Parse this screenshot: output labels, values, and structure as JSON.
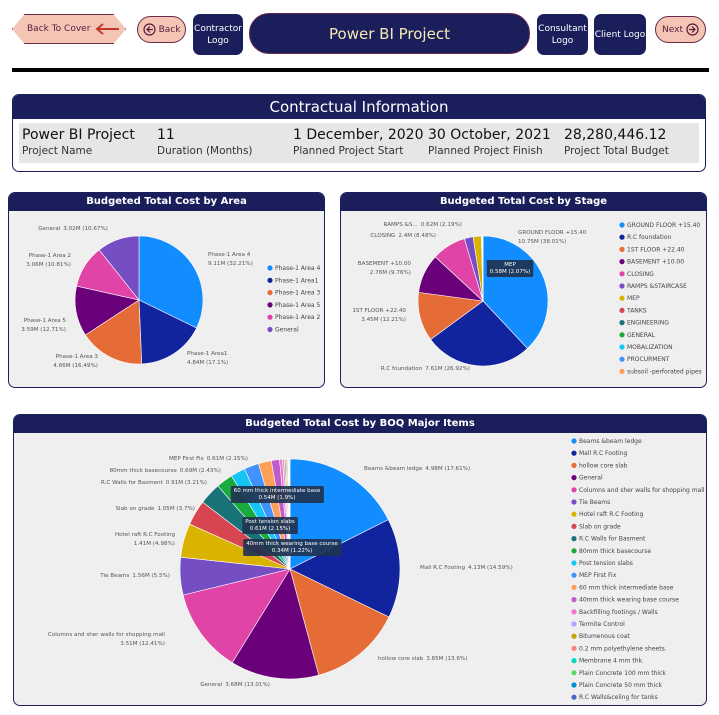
{
  "header": {
    "back_to_cover": "Back To Cover",
    "back": "Back",
    "contractor_logo": "Contractor Logo",
    "title": "Power BI Project",
    "consultant_logo": "Consultant Logo",
    "client_logo": "Client Logo",
    "next": "Next"
  },
  "contract": {
    "title": "Contractual Information",
    "fields": [
      {
        "value": "Power BI Project",
        "label": "Project Name"
      },
      {
        "value": 11,
        "label": "Duration (Months)"
      },
      {
        "value": "1 December, 2020",
        "label": "Planned Project Start"
      },
      {
        "value": "30 October, 2021",
        "label": "Planned Project Finish"
      },
      {
        "value": "28,280,446.12",
        "label": "Project Total Budget"
      }
    ]
  },
  "chart_data": [
    {
      "type": "pie",
      "title": "Budgeted Total Cost by Area",
      "legend": "right",
      "categories": [
        "Phase-1 Area 4",
        "Phase-1 Area1",
        "Phase-1 Area 3",
        "Phase-1 Area 5",
        "Phase-1 Area 2",
        "General"
      ],
      "values": [
        9.11,
        4.84,
        4.66,
        3.59,
        3.06,
        3.02
      ],
      "value_labels": [
        "9.11M (32.21%)",
        "4.84M (17.1%)",
        "4.66M (16.49%)",
        "3.59M (12.71%)",
        "3.06M (10.81%)",
        "3.02M (10.67%)"
      ],
      "colors": [
        "#118dff",
        "#12239e",
        "#e66c37",
        "#6b007b",
        "#e044a7",
        "#744ec2"
      ]
    },
    {
      "type": "pie",
      "title": "Budgeted Total Cost by Stage",
      "legend": "right",
      "categories": [
        "GROUND FLOOR +15.40",
        "R.C foundation",
        "1ST FLOOR +22.40",
        "BASEMENT +10.00",
        "CLOSING",
        "RAMPS &STAIRCASE",
        "MEP",
        "TANKS",
        "ENGINEERING",
        "GENERAL",
        "MOBALIZATION",
        "PROCURMENT",
        "subsoil -perforated pipes"
      ],
      "data_label_names": [
        "GROUND FLOOR +15.40",
        "R.C foundation",
        "1ST FLOOR +22.40",
        "BASEMENT +10.00",
        "CLOSING",
        "RAMPS &S...",
        "MEP",
        null,
        null,
        null,
        null,
        null,
        null
      ],
      "values": [
        10.75,
        7.61,
        3.45,
        2.76,
        2.4,
        0.62,
        0.58,
        0.03,
        0.02,
        0.02,
        0.02,
        0.01,
        0.01
      ],
      "value_labels": [
        "10.75M (38.01%)",
        "7.61M (26.92%)",
        "3.45M (12.21%)",
        "2.76M (9.76%)",
        "2.4M (8.48%)",
        "0.62M (2.19%)",
        "0.58M (2.07%)",
        null,
        null,
        null,
        null,
        null,
        null
      ],
      "colors": [
        "#118dff",
        "#12239e",
        "#e66c37",
        "#6b007b",
        "#e044a7",
        "#744ec2",
        "#d9b300",
        "#d64550",
        "#197278",
        "#1aab40",
        "#15c6f4",
        "#4092ff",
        "#ffa058"
      ]
    },
    {
      "type": "pie",
      "title": "Budgeted Total Cost by BOQ Major Items",
      "legend": "right",
      "categories": [
        "Beams &beam ledge",
        "Mall R.C Footing",
        "hollow core slab",
        "General",
        "Columns and sher walls for shopping mall",
        "Tie Beams",
        "Hotel raft R.C Footing",
        "Slab on grade",
        "R.C Walls for Basment",
        "80mm thick basecourse",
        "Post tension slabs",
        "MEP First Fix",
        "60 mm thick intermediate base",
        "40mm thick wearing base course",
        "Backfilling footings / Walls",
        "Termite Control",
        "Bitumenous coat",
        "0.2 mm polyethylene sheets.",
        "Membrane  4 mm thk.",
        "Plain Concrete 100 mm thick",
        "Plain Concrete 50 mm thick",
        "R.C Walls&celing for tanks"
      ],
      "values": [
        4.98,
        4.13,
        3.85,
        3.68,
        3.51,
        1.56,
        1.41,
        1.05,
        0.91,
        0.69,
        0.61,
        0.61,
        0.54,
        0.34,
        0.12,
        0.08,
        0.06,
        0.05,
        0.04,
        0.03,
        0.03,
        0.02
      ],
      "value_labels": [
        "4.98M (17.61%)",
        "4.13M (14.59%)",
        "3.85M (13.6%)",
        "3.68M (13.01%)",
        "3.51M (12.41%)",
        "1.56M (5.5%)",
        "1.41M (4.98%)",
        "1.05M (3.7%)",
        "0.91M (3.21%)",
        "0.69M (2.43%)",
        "0.61M (2.15%)",
        "0.61M (2.15%)",
        "0.54M (1.9%)",
        "0.34M (1.22%)",
        null,
        null,
        null,
        null,
        null,
        null,
        null,
        null
      ],
      "colors": [
        "#118dff",
        "#12239e",
        "#e66c37",
        "#6b007b",
        "#e044a7",
        "#744ec2",
        "#d9b300",
        "#d64550",
        "#197278",
        "#1aab40",
        "#15c6f4",
        "#4092ff",
        "#ffa058",
        "#be5dc9",
        "#f472d0",
        "#b5a1ff",
        "#c4a200",
        "#ff8080",
        "#00dbbc",
        "#5bd667",
        "#0091d5",
        "#4668c5"
      ]
    }
  ]
}
